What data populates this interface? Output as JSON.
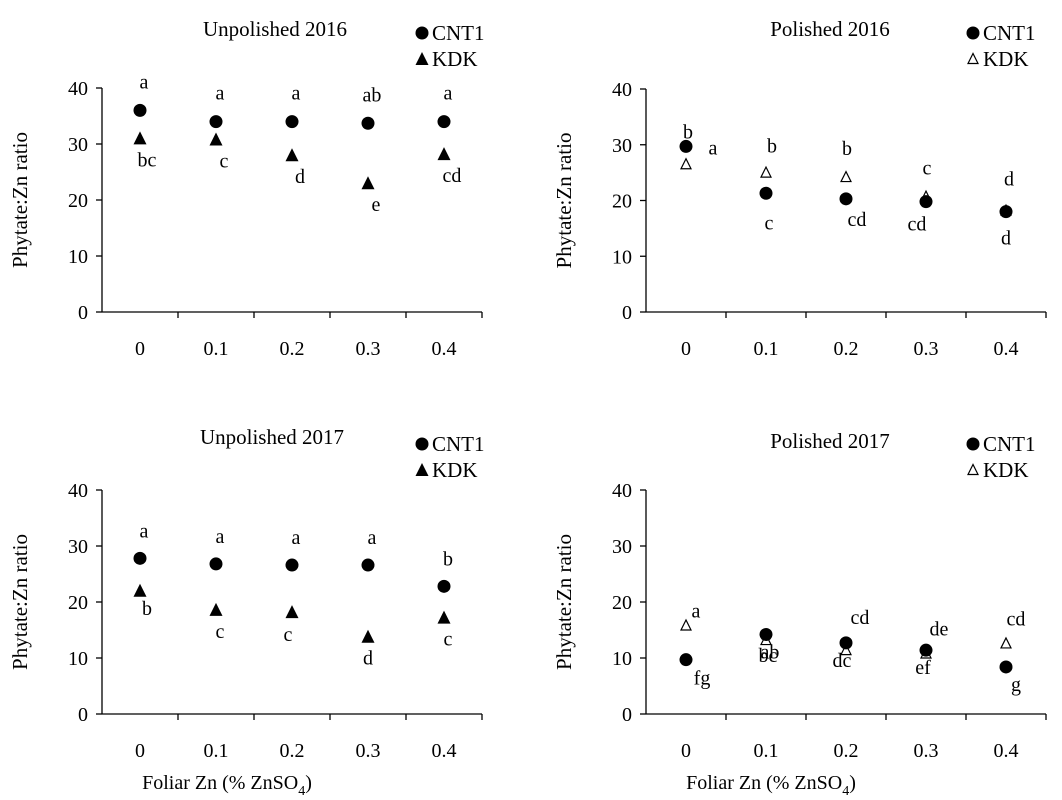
{
  "x_axis_label": {
    "prefix": "Foliar Zn (% ZnSO",
    "sub": "4",
    "suffix": ")"
  },
  "chart_data": [
    {
      "type": "scatter",
      "title": "Unpolished 2016",
      "ylabel": "Phytate:Zn ratio",
      "xlabel": "",
      "categories": [
        "0",
        "0.1",
        "0.2",
        "0.3",
        "0.4"
      ],
      "ylim": [
        0,
        40
      ],
      "yticks": [
        "0",
        "10",
        "20",
        "30",
        "40"
      ],
      "series": [
        {
          "name": "CNT1",
          "marker": "filled-circle",
          "values": [
            36,
            34,
            34,
            33.7,
            34
          ],
          "letters": [
            "a",
            "a",
            "a",
            "ab",
            "a"
          ]
        },
        {
          "name": "KDK",
          "marker": "filled-triangle",
          "values": [
            31,
            30.8,
            28,
            23,
            28.2
          ],
          "letters": [
            "bc",
            "c",
            "d",
            "e",
            "cd"
          ]
        }
      ]
    },
    {
      "type": "scatter",
      "title": "Polished 2016",
      "ylabel": "Phytate:Zn ratio",
      "xlabel": "",
      "categories": [
        "0",
        "0.1",
        "0.2",
        "0.3",
        "0.4"
      ],
      "ylim": [
        0,
        40
      ],
      "yticks": [
        "0",
        "10",
        "20",
        "30",
        "40"
      ],
      "series": [
        {
          "name": "CNT1",
          "marker": "filled-circle",
          "values": [
            29.7,
            21.3,
            20.3,
            19.8,
            18
          ],
          "letters": [
            "a",
            "c",
            "cd",
            "cd",
            "d"
          ]
        },
        {
          "name": "KDK",
          "marker": "open-triangle",
          "values": [
            26.5,
            25,
            24.2,
            20.7,
            18.2
          ],
          "letters": [
            "b",
            "b",
            "b",
            "c",
            "d"
          ]
        }
      ]
    },
    {
      "type": "scatter",
      "title": "Unpolished 2017",
      "ylabel": "Phytate:Zn ratio",
      "xlabel": "",
      "categories": [
        "0",
        "0.1",
        "0.2",
        "0.3",
        "0.4"
      ],
      "ylim": [
        0,
        40
      ],
      "yticks": [
        "0",
        "10",
        "20",
        "30",
        "40"
      ],
      "series": [
        {
          "name": "CNT1",
          "marker": "filled-circle",
          "values": [
            27.8,
            26.8,
            26.6,
            26.6,
            22.8
          ],
          "letters": [
            "a",
            "a",
            "a",
            "a",
            "b"
          ]
        },
        {
          "name": "KDK",
          "marker": "filled-triangle",
          "values": [
            22,
            18.6,
            18.2,
            13.8,
            17.2
          ],
          "letters": [
            "b",
            "c",
            "c",
            "d",
            "c"
          ]
        }
      ]
    },
    {
      "type": "scatter",
      "title": "Polished 2017",
      "ylabel": "Phytate:Zn ratio",
      "xlabel": "",
      "categories": [
        "0",
        "0.1",
        "0.2",
        "0.3",
        "0.4"
      ],
      "ylim": [
        0,
        40
      ],
      "yticks": [
        "0",
        "10",
        "20",
        "30",
        "40"
      ],
      "series": [
        {
          "name": "CNT1",
          "marker": "filled-circle",
          "values": [
            9.7,
            14.2,
            12.7,
            11.4,
            8.4
          ],
          "letters": [
            "fg",
            "ab",
            "dc",
            "ef",
            "g"
          ]
        },
        {
          "name": "KDK",
          "marker": "open-triangle",
          "values": [
            15.8,
            13.2,
            11.4,
            10.8,
            12.6
          ],
          "letters": [
            "a",
            "bc",
            "cd",
            "de",
            "cd"
          ]
        }
      ]
    }
  ]
}
